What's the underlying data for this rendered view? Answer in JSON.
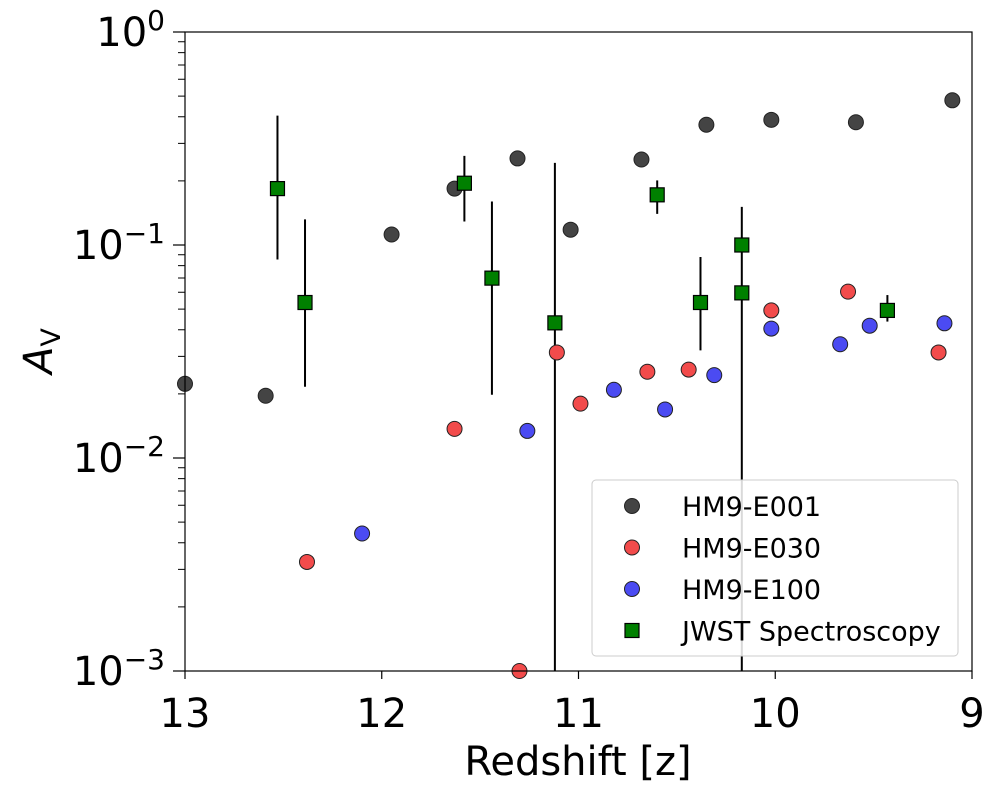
{
  "chart_data": {
    "type": "scatter",
    "title": "",
    "xlabel": "Redshift [z]",
    "ylabel": "A",
    "ylabel_subscript": "V",
    "xlim": [
      13,
      9
    ],
    "x_inverted": true,
    "ylim": [
      0.001,
      1
    ],
    "y_scale": "log",
    "x_ticks": [
      13,
      12,
      11,
      10,
      9
    ],
    "x_tick_labels": [
      "13",
      "12",
      "11",
      "10",
      "9"
    ],
    "y_ticks": [
      0.001,
      0.01,
      0.1,
      1
    ],
    "y_tick_labels": [
      {
        "base": "10",
        "exp": "−3"
      },
      {
        "base": "10",
        "exp": "−2"
      },
      {
        "base": "10",
        "exp": "−1"
      },
      {
        "base": "10",
        "exp": "0"
      }
    ],
    "grid": false,
    "legend_position": "lower-right",
    "series": [
      {
        "name": "HM9-E001",
        "marker": "circle",
        "color": "#444444",
        "points": [
          {
            "x": 13.0,
            "y": 0.0223
          },
          {
            "x": 12.59,
            "y": 0.0196
          },
          {
            "x": 11.95,
            "y": 0.112
          },
          {
            "x": 11.63,
            "y": 0.184
          },
          {
            "x": 11.31,
            "y": 0.255
          },
          {
            "x": 11.04,
            "y": 0.118
          },
          {
            "x": 10.68,
            "y": 0.252
          },
          {
            "x": 10.35,
            "y": 0.367
          },
          {
            "x": 10.02,
            "y": 0.387
          },
          {
            "x": 9.59,
            "y": 0.377
          },
          {
            "x": 9.1,
            "y": 0.478
          }
        ]
      },
      {
        "name": "HM9-E030",
        "marker": "circle",
        "color": "#f24b4b",
        "points": [
          {
            "x": 12.38,
            "y": 0.00325
          },
          {
            "x": 11.63,
            "y": 0.0137
          },
          {
            "x": 11.3,
            "y": 0.001
          },
          {
            "x": 11.11,
            "y": 0.0313
          },
          {
            "x": 10.99,
            "y": 0.018
          },
          {
            "x": 10.65,
            "y": 0.0254
          },
          {
            "x": 10.44,
            "y": 0.026
          },
          {
            "x": 10.02,
            "y": 0.0493
          },
          {
            "x": 9.63,
            "y": 0.0604
          },
          {
            "x": 9.17,
            "y": 0.0313
          }
        ]
      },
      {
        "name": "HM9-E100",
        "marker": "circle",
        "color": "#4b4bf2",
        "points": [
          {
            "x": 12.1,
            "y": 0.00442
          },
          {
            "x": 11.26,
            "y": 0.0134
          },
          {
            "x": 10.82,
            "y": 0.0209
          },
          {
            "x": 10.56,
            "y": 0.0169
          },
          {
            "x": 10.31,
            "y": 0.0245
          },
          {
            "x": 10.02,
            "y": 0.0405
          },
          {
            "x": 9.67,
            "y": 0.0342
          },
          {
            "x": 9.52,
            "y": 0.0418
          },
          {
            "x": 9.14,
            "y": 0.0429
          }
        ]
      },
      {
        "name": "JWST Spectroscopy",
        "marker": "square",
        "color": "#008000",
        "points": [
          {
            "x": 12.53,
            "y": 0.184,
            "ylo": 0.0855,
            "yhi": 0.405
          },
          {
            "x": 12.39,
            "y": 0.0537,
            "ylo": 0.0216,
            "yhi": 0.132
          },
          {
            "x": 11.58,
            "y": 0.195,
            "ylo": 0.129,
            "yhi": 0.262
          },
          {
            "x": 11.44,
            "y": 0.0699,
            "ylo": 0.0198,
            "yhi": 0.16
          },
          {
            "x": 11.12,
            "y": 0.0431,
            "ylo": 0.001,
            "yhi": 0.243
          },
          {
            "x": 10.6,
            "y": 0.172,
            "ylo": 0.14,
            "yhi": 0.201
          },
          {
            "x": 10.38,
            "y": 0.0537,
            "ylo": 0.032,
            "yhi": 0.0878
          },
          {
            "x": 10.17,
            "y": 0.1,
            "ylo": 0.001,
            "yhi": 0.151
          },
          {
            "x": 10.17,
            "y": 0.0596
          },
          {
            "x": 9.43,
            "y": 0.0493,
            "ylo": 0.0437,
            "yhi": 0.0582
          }
        ]
      }
    ]
  }
}
